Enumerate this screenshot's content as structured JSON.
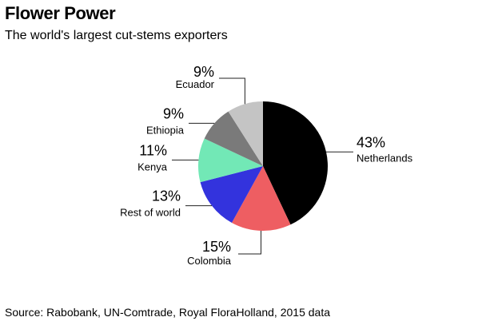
{
  "header": {
    "title": "Flower Power",
    "subtitle": "The world's largest cut-stems exporters"
  },
  "footer": {
    "source": "Source: Rabobank, UN-Comtrade, Royal FloraHolland, 2015 data"
  },
  "chart_data": {
    "type": "pie",
    "title": "Flower Power",
    "subtitle": "The world's largest cut-stems exporters",
    "start_angle": "12 o'clock",
    "direction": "clockwise",
    "slices": [
      {
        "label": "Netherlands",
        "value": 43,
        "value_label": "43%",
        "color": "#000000"
      },
      {
        "label": "Colombia",
        "value": 15,
        "value_label": "15%",
        "color": "#ee5e62"
      },
      {
        "label": "Rest of world",
        "value": 13,
        "value_label": "13%",
        "color": "#3333dd"
      },
      {
        "label": "Kenya",
        "value": 11,
        "value_label": "11%",
        "color": "#72e8b6"
      },
      {
        "label": "Ethiopia",
        "value": 9,
        "value_label": "9%",
        "color": "#7a7a7a"
      },
      {
        "label": "Ecuador",
        "value": 9,
        "value_label": "9%",
        "color": "#c4c4c4"
      }
    ]
  }
}
